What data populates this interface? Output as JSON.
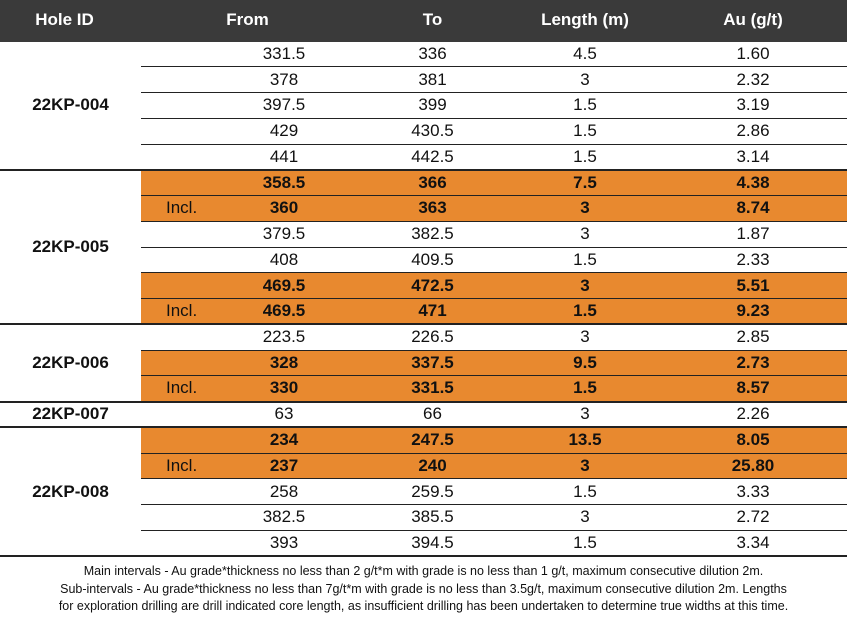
{
  "table": {
    "headers": {
      "hole_id": "Hole ID",
      "from": "From",
      "to": "To",
      "length": "Length (m)",
      "au": "Au (g/t)"
    },
    "holes": [
      {
        "hole_id": "22KP-004",
        "rows": [
          {
            "incl": "",
            "from": "331.5",
            "to": "336",
            "length": "4.5",
            "au": "1.60",
            "highlight": false
          },
          {
            "incl": "",
            "from": "378",
            "to": "381",
            "length": "3",
            "au": "2.32",
            "highlight": false
          },
          {
            "incl": "",
            "from": "397.5",
            "to": "399",
            "length": "1.5",
            "au": "3.19",
            "highlight": false
          },
          {
            "incl": "",
            "from": "429",
            "to": "430.5",
            "length": "1.5",
            "au": "2.86",
            "highlight": false
          },
          {
            "incl": "",
            "from": "441",
            "to": "442.5",
            "length": "1.5",
            "au": "3.14",
            "highlight": false
          }
        ]
      },
      {
        "hole_id": "22KP-005",
        "rows": [
          {
            "incl": "",
            "from": "358.5",
            "to": "366",
            "length": "7.5",
            "au": "4.38",
            "highlight": true
          },
          {
            "incl": "Incl.",
            "from": "360",
            "to": "363",
            "length": "3",
            "au": "8.74",
            "highlight": true
          },
          {
            "incl": "",
            "from": "379.5",
            "to": "382.5",
            "length": "3",
            "au": "1.87",
            "highlight": false
          },
          {
            "incl": "",
            "from": "408",
            "to": "409.5",
            "length": "1.5",
            "au": "2.33",
            "highlight": false
          },
          {
            "incl": "",
            "from": "469.5",
            "to": "472.5",
            "length": "3",
            "au": "5.51",
            "highlight": true
          },
          {
            "incl": "Incl.",
            "from": "469.5",
            "to": "471",
            "length": "1.5",
            "au": "9.23",
            "highlight": true
          }
        ]
      },
      {
        "hole_id": "22KP-006",
        "rows": [
          {
            "incl": "",
            "from": "223.5",
            "to": "226.5",
            "length": "3",
            "au": "2.85",
            "highlight": false
          },
          {
            "incl": "",
            "from": "328",
            "to": "337.5",
            "length": "9.5",
            "au": "2.73",
            "highlight": true
          },
          {
            "incl": "Incl.",
            "from": "330",
            "to": "331.5",
            "length": "1.5",
            "au": "8.57",
            "highlight": true
          }
        ]
      },
      {
        "hole_id": "22KP-007",
        "rows": [
          {
            "incl": "",
            "from": "63",
            "to": "66",
            "length": "3",
            "au": "2.26",
            "highlight": false
          }
        ]
      },
      {
        "hole_id": "22KP-008",
        "rows": [
          {
            "incl": "",
            "from": "234",
            "to": "247.5",
            "length": "13.5",
            "au": "8.05",
            "highlight": true
          },
          {
            "incl": "Incl.",
            "from": "237",
            "to": "240",
            "length": "3",
            "au": "25.80",
            "highlight": true
          },
          {
            "incl": "",
            "from": "258",
            "to": "259.5",
            "length": "1.5",
            "au": "3.33",
            "highlight": false
          },
          {
            "incl": "",
            "from": "382.5",
            "to": "385.5",
            "length": "3",
            "au": "2.72",
            "highlight": false
          },
          {
            "incl": "",
            "from": "393",
            "to": "394.5",
            "length": "1.5",
            "au": "3.34",
            "highlight": false
          }
        ]
      }
    ]
  },
  "footnote": {
    "line1": "Main intervals - Au grade*thickness no less than 2 g/t*m with grade is no less than 1 g/t, maximum consecutive dilution 2m.",
    "line2": "Sub-intervals - Au grade*thickness no less than 7g/t*m with grade is no less than 3.5g/t, maximum consecutive dilution 2m. Lengths",
    "line3": "for exploration drilling are drill indicated core length, as insufficient drilling has been undertaken to determine true widths at this time."
  },
  "colors": {
    "header_bg": "#3a3a3a",
    "highlight": "#e8892f"
  }
}
